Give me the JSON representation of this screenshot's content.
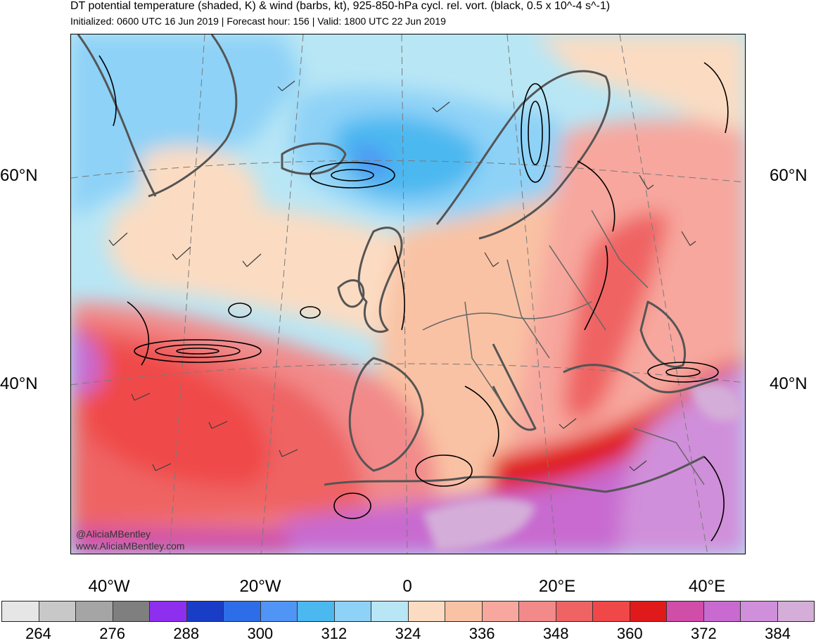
{
  "header": {
    "title": "DT potential temperature (shaded, K) & wind (barbs, kt), 925-850-hPa cycl. rel. vort. (black, 0.5 x 10^-4 s^-1)",
    "subtitle": "Initialized: 0600 UTC 16 Jun 2019 | Forecast hour: 156 | Valid: 1800 UTC 22 Jun 2019"
  },
  "map": {
    "lat_labels": [
      "60°N",
      "40°N"
    ],
    "lon_labels": [
      "40°W",
      "20°W",
      "0",
      "20°E",
      "40°E"
    ],
    "credit_handle": "@AliciaMBentley",
    "credit_url": "www.AliciaMBentley.com"
  },
  "colorbar": {
    "colors": [
      "#e6e6e6",
      "#c8c8c8",
      "#a5a5a5",
      "#7f7f7f",
      "#8e2ff0",
      "#1a3dc8",
      "#2d6ee8",
      "#5095f5",
      "#4bb8f0",
      "#8ed2f7",
      "#b8e6f5",
      "#fbdcc2",
      "#f9c2a4",
      "#f7a79e",
      "#f28a8a",
      "#ef6363",
      "#f04848",
      "#e01a1a",
      "#d04da8",
      "#c86ad0",
      "#d08fda",
      "#d4aed8"
    ],
    "tick_labels": [
      "264",
      "276",
      "288",
      "300",
      "312",
      "324",
      "336",
      "348",
      "360",
      "372",
      "384"
    ]
  }
}
